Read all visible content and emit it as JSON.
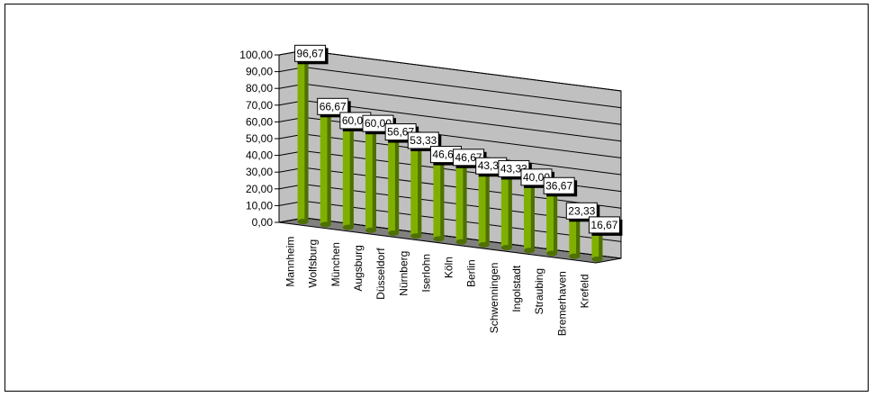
{
  "chart_data": {
    "type": "bar",
    "categories": [
      "Mannheim",
      "Wolfsburg",
      "München",
      "Augsburg",
      "Düsseldorf",
      "Nürnberg",
      "Iserlohn",
      "Köln",
      "Berlin",
      "Schwenningen",
      "Ingolstadt",
      "Straubing",
      "Bremerhaven",
      "Krefeld"
    ],
    "values": [
      96.67,
      66.67,
      60.0,
      60.0,
      56.67,
      53.33,
      46.67,
      46.67,
      43.33,
      43.33,
      40.0,
      36.67,
      23.33,
      16.67
    ],
    "value_labels": [
      "96,67",
      "66,67",
      "60,00",
      "60,00",
      "56,67",
      "53,33",
      "46,67",
      "46,67",
      "43,33",
      "43,33",
      "40,00",
      "36,67",
      "23,33",
      "16,67"
    ],
    "ylim": [
      0,
      100
    ],
    "yticks": [
      0,
      10,
      20,
      30,
      40,
      50,
      60,
      70,
      80,
      90,
      100
    ],
    "ytick_labels": [
      "0,00",
      "10,00",
      "20,00",
      "30,00",
      "40,00",
      "50,00",
      "60,00",
      "70,00",
      "80,00",
      "90,00",
      "100,00"
    ],
    "title": "",
    "xlabel": "",
    "ylabel": "",
    "grid": true,
    "legend": "none",
    "colors": {
      "bar_front": "#7fb000",
      "bar_dark": "#4e7000",
      "bar_top": "#b7e03c",
      "wall": "#c0c0c0",
      "floor": "#808080",
      "gridline": "#000000",
      "label_bg": "#ffffff",
      "label_shadow": "#000000"
    }
  }
}
